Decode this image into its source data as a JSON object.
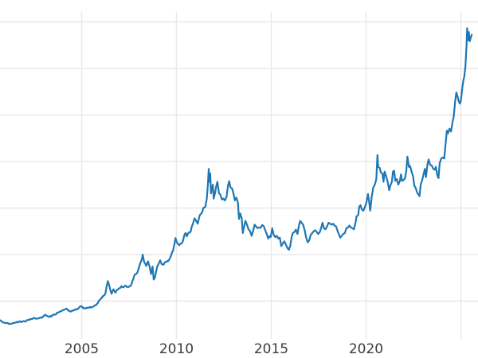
{
  "colors": {
    "line": "#1f77b4",
    "grid": "#e8e8e8",
    "tick_label": "#3c3c3c",
    "background": "#ffffff"
  },
  "axis": {
    "x_tick_labels": [
      "2005",
      "2010",
      "2015",
      "2020"
    ]
  },
  "chart_data": {
    "type": "line",
    "title": "",
    "xlabel": "",
    "ylabel": "",
    "grid": true,
    "legend_position": "none",
    "xlim": [
      2000.693,
      2025.903
    ],
    "ylim": [
      103,
      3607
    ],
    "x_ticks": [
      {
        "value": 2005,
        "label": "2005"
      },
      {
        "value": 2010,
        "label": "2010"
      },
      {
        "value": 2015,
        "label": "2015"
      },
      {
        "value": 2020,
        "label": "2020"
      },
      {
        "value": 2025,
        "label": ""
      }
    ],
    "y_gridline_values": [
      500,
      1000,
      1500,
      2000,
      2500,
      3000,
      3500
    ],
    "series": [
      {
        "name": "",
        "color": "#1f77b4",
        "points": [
          [
            2000.69,
            295
          ],
          [
            2000.8,
            278
          ],
          [
            2000.95,
            268
          ],
          [
            2001.1,
            265
          ],
          [
            2001.25,
            258
          ],
          [
            2001.4,
            268
          ],
          [
            2001.55,
            272
          ],
          [
            2001.7,
            280
          ],
          [
            2001.85,
            278
          ],
          [
            2002.0,
            282
          ],
          [
            2002.15,
            296
          ],
          [
            2002.3,
            304
          ],
          [
            2002.45,
            318
          ],
          [
            2002.6,
            312
          ],
          [
            2002.75,
            316
          ],
          [
            2002.9,
            320
          ],
          [
            2003.05,
            352
          ],
          [
            2003.15,
            342
          ],
          [
            2003.3,
            330
          ],
          [
            2003.45,
            346
          ],
          [
            2003.6,
            356
          ],
          [
            2003.75,
            378
          ],
          [
            2003.9,
            390
          ],
          [
            2004.05,
            408
          ],
          [
            2004.2,
            420
          ],
          [
            2004.3,
            398
          ],
          [
            2004.4,
            388
          ],
          [
            2004.55,
            398
          ],
          [
            2004.7,
            408
          ],
          [
            2004.85,
            428
          ],
          [
            2004.95,
            445
          ],
          [
            2005.1,
            423
          ],
          [
            2005.25,
            428
          ],
          [
            2005.4,
            432
          ],
          [
            2005.55,
            436
          ],
          [
            2005.7,
            456
          ],
          [
            2005.85,
            478
          ],
          [
            2005.95,
            512
          ],
          [
            2006.1,
            550
          ],
          [
            2006.25,
            582
          ],
          [
            2006.38,
            715
          ],
          [
            2006.45,
            672
          ],
          [
            2006.52,
            612
          ],
          [
            2006.58,
            580
          ],
          [
            2006.68,
            628
          ],
          [
            2006.78,
            592
          ],
          [
            2006.88,
            625
          ],
          [
            2006.98,
            638
          ],
          [
            2007.1,
            662
          ],
          [
            2007.2,
            648
          ],
          [
            2007.32,
            668
          ],
          [
            2007.42,
            652
          ],
          [
            2007.52,
            662
          ],
          [
            2007.62,
            678
          ],
          [
            2007.72,
            735
          ],
          [
            2007.82,
            790
          ],
          [
            2007.92,
            802
          ],
          [
            2008.02,
            862
          ],
          [
            2008.1,
            912
          ],
          [
            2008.2,
            972
          ],
          [
            2008.22,
            1000
          ],
          [
            2008.3,
            918
          ],
          [
            2008.4,
            878
          ],
          [
            2008.5,
            928
          ],
          [
            2008.58,
            872
          ],
          [
            2008.66,
            792
          ],
          [
            2008.74,
            872
          ],
          [
            2008.8,
            732
          ],
          [
            2008.86,
            752
          ],
          [
            2008.92,
            812
          ],
          [
            2008.98,
            868
          ],
          [
            2009.06,
            902
          ],
          [
            2009.14,
            938
          ],
          [
            2009.22,
            898
          ],
          [
            2009.32,
            892
          ],
          [
            2009.42,
            922
          ],
          [
            2009.52,
            932
          ],
          [
            2009.62,
            948
          ],
          [
            2009.72,
            992
          ],
          [
            2009.82,
            1042
          ],
          [
            2009.9,
            1120
          ],
          [
            2009.95,
            1178
          ],
          [
            2010.05,
            1122
          ],
          [
            2010.15,
            1102
          ],
          [
            2010.25,
            1118
          ],
          [
            2010.35,
            1152
          ],
          [
            2010.42,
            1212
          ],
          [
            2010.48,
            1232
          ],
          [
            2010.55,
            1196
          ],
          [
            2010.65,
            1238
          ],
          [
            2010.75,
            1248
          ],
          [
            2010.85,
            1322
          ],
          [
            2010.95,
            1388
          ],
          [
            2011.05,
            1358
          ],
          [
            2011.12,
            1332
          ],
          [
            2011.22,
            1418
          ],
          [
            2011.32,
            1442
          ],
          [
            2011.42,
            1502
          ],
          [
            2011.52,
            1512
          ],
          [
            2011.6,
            1602
          ],
          [
            2011.66,
            1758
          ],
          [
            2011.7,
            1920
          ],
          [
            2011.74,
            1782
          ],
          [
            2011.78,
            1872
          ],
          [
            2011.82,
            1658
          ],
          [
            2011.87,
            1722
          ],
          [
            2011.92,
            1752
          ],
          [
            2011.96,
            1602
          ],
          [
            2012.03,
            1658
          ],
          [
            2012.1,
            1738
          ],
          [
            2012.16,
            1782
          ],
          [
            2012.24,
            1662
          ],
          [
            2012.32,
            1642
          ],
          [
            2012.4,
            1592
          ],
          [
            2012.48,
            1602
          ],
          [
            2012.56,
            1582
          ],
          [
            2012.64,
            1618
          ],
          [
            2012.72,
            1742
          ],
          [
            2012.78,
            1788
          ],
          [
            2012.85,
            1722
          ],
          [
            2012.93,
            1712
          ],
          [
            2013.0,
            1662
          ],
          [
            2013.08,
            1582
          ],
          [
            2013.16,
            1612
          ],
          [
            2013.24,
            1562
          ],
          [
            2013.3,
            1382
          ],
          [
            2013.36,
            1442
          ],
          [
            2013.44,
            1392
          ],
          [
            2013.5,
            1232
          ],
          [
            2013.56,
            1292
          ],
          [
            2013.64,
            1362
          ],
          [
            2013.72,
            1322
          ],
          [
            2013.8,
            1272
          ],
          [
            2013.88,
            1252
          ],
          [
            2013.96,
            1202
          ],
          [
            2014.04,
            1252
          ],
          [
            2014.12,
            1322
          ],
          [
            2014.2,
            1302
          ],
          [
            2014.28,
            1284
          ],
          [
            2014.36,
            1292
          ],
          [
            2014.44,
            1288
          ],
          [
            2014.52,
            1318
          ],
          [
            2014.6,
            1306
          ],
          [
            2014.68,
            1262
          ],
          [
            2014.76,
            1222
          ],
          [
            2014.84,
            1172
          ],
          [
            2014.9,
            1198
          ],
          [
            2014.97,
            1188
          ],
          [
            2015.05,
            1282
          ],
          [
            2015.13,
            1212
          ],
          [
            2015.21,
            1188
          ],
          [
            2015.29,
            1202
          ],
          [
            2015.37,
            1172
          ],
          [
            2015.45,
            1182
          ],
          [
            2015.53,
            1092
          ],
          [
            2015.61,
            1122
          ],
          [
            2015.69,
            1142
          ],
          [
            2015.77,
            1108
          ],
          [
            2015.85,
            1072
          ],
          [
            2015.93,
            1052
          ],
          [
            2016.0,
            1092
          ],
          [
            2016.08,
            1192
          ],
          [
            2016.14,
            1232
          ],
          [
            2016.22,
            1242
          ],
          [
            2016.3,
            1268
          ],
          [
            2016.38,
            1222
          ],
          [
            2016.46,
            1312
          ],
          [
            2016.52,
            1362
          ],
          [
            2016.6,
            1342
          ],
          [
            2016.68,
            1322
          ],
          [
            2016.76,
            1262
          ],
          [
            2016.84,
            1182
          ],
          [
            2016.92,
            1132
          ],
          [
            2017.0,
            1152
          ],
          [
            2017.08,
            1212
          ],
          [
            2017.16,
            1232
          ],
          [
            2017.24,
            1252
          ],
          [
            2017.32,
            1262
          ],
          [
            2017.4,
            1242
          ],
          [
            2017.48,
            1222
          ],
          [
            2017.56,
            1242
          ],
          [
            2017.64,
            1292
          ],
          [
            2017.7,
            1342
          ],
          [
            2017.78,
            1282
          ],
          [
            2017.86,
            1272
          ],
          [
            2017.94,
            1302
          ],
          [
            2018.02,
            1342
          ],
          [
            2018.1,
            1332
          ],
          [
            2018.18,
            1322
          ],
          [
            2018.26,
            1332
          ],
          [
            2018.34,
            1312
          ],
          [
            2018.42,
            1302
          ],
          [
            2018.5,
            1252
          ],
          [
            2018.58,
            1212
          ],
          [
            2018.64,
            1182
          ],
          [
            2018.72,
            1202
          ],
          [
            2018.8,
            1222
          ],
          [
            2018.88,
            1232
          ],
          [
            2018.96,
            1282
          ],
          [
            2019.04,
            1292
          ],
          [
            2019.12,
            1312
          ],
          [
            2019.2,
            1292
          ],
          [
            2019.28,
            1282
          ],
          [
            2019.36,
            1272
          ],
          [
            2019.44,
            1342
          ],
          [
            2019.5,
            1412
          ],
          [
            2019.58,
            1422
          ],
          [
            2019.64,
            1512
          ],
          [
            2019.7,
            1532
          ],
          [
            2019.78,
            1482
          ],
          [
            2019.86,
            1472
          ],
          [
            2019.94,
            1512
          ],
          [
            2020.02,
            1562
          ],
          [
            2020.1,
            1652
          ],
          [
            2020.16,
            1572
          ],
          [
            2020.22,
            1472
          ],
          [
            2020.3,
            1622
          ],
          [
            2020.38,
            1722
          ],
          [
            2020.46,
            1752
          ],
          [
            2020.54,
            1812
          ],
          [
            2020.6,
            2070
          ],
          [
            2020.64,
            1942
          ],
          [
            2020.72,
            1932
          ],
          [
            2020.78,
            1882
          ],
          [
            2020.86,
            1872
          ],
          [
            2020.92,
            1782
          ],
          [
            2020.98,
            1892
          ],
          [
            2021.06,
            1842
          ],
          [
            2021.14,
            1782
          ],
          [
            2021.22,
            1692
          ],
          [
            2021.28,
            1742
          ],
          [
            2021.36,
            1782
          ],
          [
            2021.42,
            1892
          ],
          [
            2021.48,
            1902
          ],
          [
            2021.54,
            1792
          ],
          [
            2021.62,
            1812
          ],
          [
            2021.7,
            1752
          ],
          [
            2021.78,
            1792
          ],
          [
            2021.84,
            1862
          ],
          [
            2021.9,
            1792
          ],
          [
            2021.98,
            1802
          ],
          [
            2022.06,
            1822
          ],
          [
            2022.12,
            1902
          ],
          [
            2022.18,
            2052
          ],
          [
            2022.26,
            1942
          ],
          [
            2022.32,
            1952
          ],
          [
            2022.4,
            1892
          ],
          [
            2022.48,
            1842
          ],
          [
            2022.54,
            1742
          ],
          [
            2022.62,
            1712
          ],
          [
            2022.7,
            1662
          ],
          [
            2022.78,
            1642
          ],
          [
            2022.82,
            1628
          ],
          [
            2022.88,
            1752
          ],
          [
            2022.96,
            1802
          ],
          [
            2023.04,
            1872
          ],
          [
            2023.1,
            1922
          ],
          [
            2023.16,
            1832
          ],
          [
            2023.24,
            1972
          ],
          [
            2023.3,
            2022
          ],
          [
            2023.38,
            1962
          ],
          [
            2023.46,
            1958
          ],
          [
            2023.54,
            1922
          ],
          [
            2023.62,
            1912
          ],
          [
            2023.68,
            1942
          ],
          [
            2023.76,
            1852
          ],
          [
            2023.82,
            1822
          ],
          [
            2023.88,
            1982
          ],
          [
            2023.96,
            2032
          ],
          [
            2024.04,
            2042
          ],
          [
            2024.12,
            2032
          ],
          [
            2024.18,
            2162
          ],
          [
            2024.26,
            2332
          ],
          [
            2024.32,
            2302
          ],
          [
            2024.4,
            2352
          ],
          [
            2024.48,
            2322
          ],
          [
            2024.56,
            2422
          ],
          [
            2024.62,
            2482
          ],
          [
            2024.7,
            2652
          ],
          [
            2024.76,
            2742
          ],
          [
            2024.82,
            2702
          ],
          [
            2024.88,
            2652
          ],
          [
            2024.94,
            2622
          ],
          [
            2025.0,
            2652
          ],
          [
            2025.06,
            2762
          ],
          [
            2025.12,
            2862
          ],
          [
            2025.18,
            2912
          ],
          [
            2025.24,
            3022
          ],
          [
            2025.3,
            3242
          ],
          [
            2025.33,
            3432
          ],
          [
            2025.37,
            3302
          ],
          [
            2025.42,
            3392
          ],
          [
            2025.47,
            3292
          ],
          [
            2025.52,
            3332
          ],
          [
            2025.57,
            3362
          ]
        ]
      }
    ]
  }
}
